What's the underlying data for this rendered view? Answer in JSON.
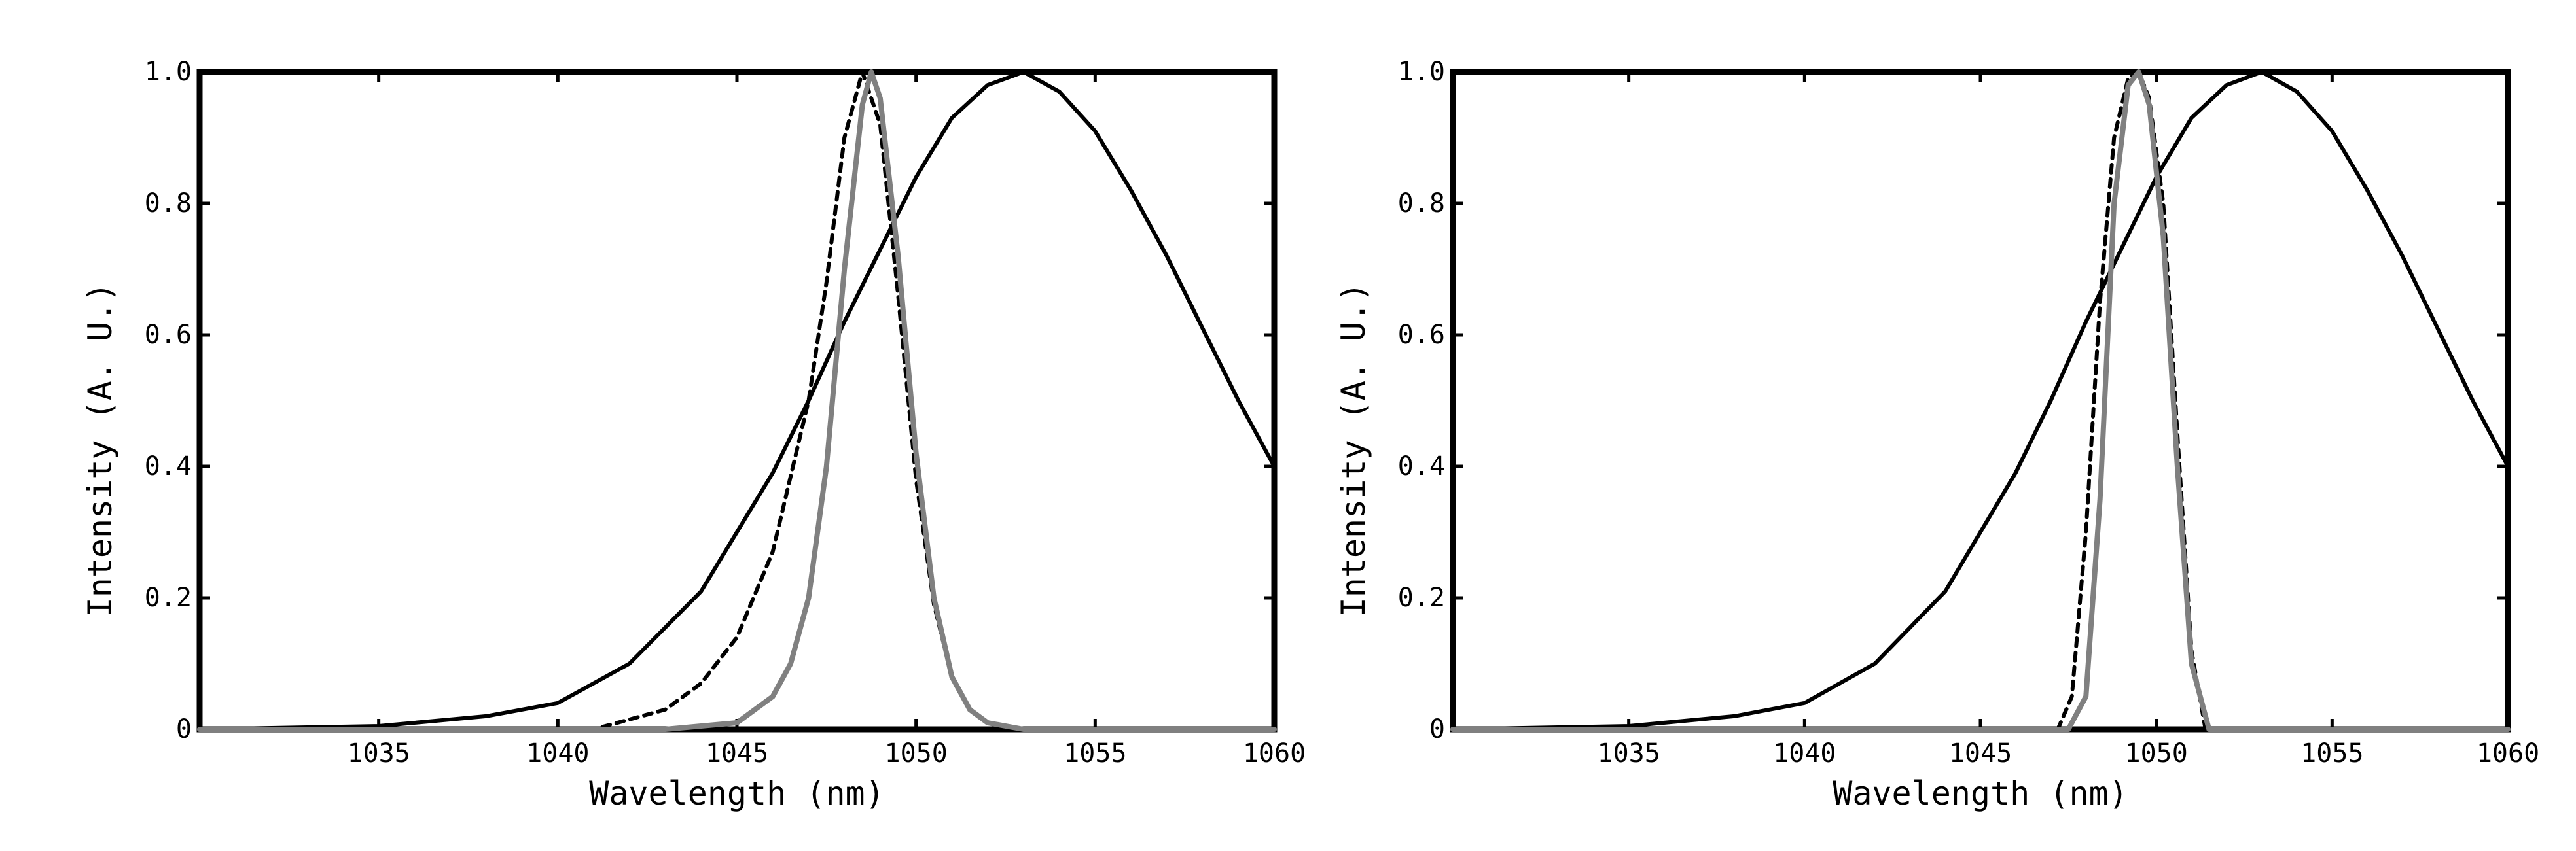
{
  "chart_data": [
    {
      "type": "line",
      "xlabel": "Wavelength (nm)",
      "ylabel": "Intensity (A. U.)",
      "xlim": [
        1030,
        1060
      ],
      "ylim": [
        0,
        1
      ],
      "xticks": [
        "1035",
        "1040",
        "1045",
        "1050",
        "1055",
        "1060"
      ],
      "yticks": [
        "0",
        "0.2",
        "0.4",
        "0.6",
        "0.8",
        "1.0"
      ],
      "grid": false,
      "series": [
        {
          "style": "solid",
          "color": "#000000",
          "x": [
            1030,
            1035,
            1038,
            1040,
            1042,
            1044,
            1046,
            1047,
            1048,
            1049,
            1050,
            1051,
            1052,
            1053,
            1054,
            1055,
            1056,
            1057,
            1058,
            1059,
            1060
          ],
          "y": [
            0,
            0.005,
            0.02,
            0.04,
            0.1,
            0.21,
            0.39,
            0.5,
            0.62,
            0.73,
            0.84,
            0.93,
            0.98,
            1.0,
            0.97,
            0.91,
            0.82,
            0.72,
            0.61,
            0.5,
            0.4
          ]
        },
        {
          "style": "dotted",
          "color": "#000000",
          "x": [
            1030,
            1041,
            1043,
            1044,
            1045,
            1046,
            1047,
            1047.5,
            1048,
            1048.5,
            1049,
            1049.5,
            1050,
            1050.5,
            1051,
            1051.5,
            1052,
            1053,
            1060
          ],
          "y": [
            0,
            0,
            0.03,
            0.07,
            0.14,
            0.27,
            0.5,
            0.68,
            0.9,
            1.0,
            0.92,
            0.66,
            0.38,
            0.19,
            0.08,
            0.03,
            0.01,
            0,
            0
          ]
        },
        {
          "style": "solid",
          "color": "#808080",
          "x": [
            1030,
            1043,
            1045,
            1046,
            1046.5,
            1047,
            1047.5,
            1048,
            1048.5,
            1048.75,
            1049,
            1049.5,
            1050,
            1050.5,
            1051,
            1051.5,
            1052,
            1053,
            1060
          ],
          "y": [
            0,
            0,
            0.01,
            0.05,
            0.1,
            0.2,
            0.4,
            0.7,
            0.95,
            1.0,
            0.96,
            0.72,
            0.42,
            0.2,
            0.08,
            0.03,
            0.01,
            0,
            0
          ]
        }
      ]
    },
    {
      "type": "line",
      "xlabel": "Wavelength (nm)",
      "ylabel": "Intensity (A. U.)",
      "xlim": [
        1030,
        1060
      ],
      "ylim": [
        0,
        1
      ],
      "xticks": [
        "1035",
        "1040",
        "1045",
        "1050",
        "1055",
        "1060"
      ],
      "yticks": [
        "0",
        "0.2",
        "0.4",
        "0.6",
        "0.8",
        "1.0"
      ],
      "grid": false,
      "series": [
        {
          "style": "solid",
          "color": "#000000",
          "x": [
            1030,
            1035,
            1038,
            1040,
            1042,
            1044,
            1046,
            1047,
            1048,
            1049,
            1050,
            1051,
            1052,
            1053,
            1054,
            1055,
            1056,
            1057,
            1058,
            1059,
            1060
          ],
          "y": [
            0,
            0.005,
            0.02,
            0.04,
            0.1,
            0.21,
            0.39,
            0.5,
            0.62,
            0.73,
            0.84,
            0.93,
            0.98,
            1.0,
            0.97,
            0.91,
            0.82,
            0.72,
            0.61,
            0.5,
            0.4
          ]
        },
        {
          "style": "dotted",
          "color": "#000000",
          "x": [
            1030,
            1047.2,
            1047.6,
            1048,
            1048.4,
            1048.8,
            1049.2,
            1049.5,
            1049.8,
            1050.2,
            1050.6,
            1051,
            1051.4,
            1060
          ],
          "y": [
            0,
            0,
            0.05,
            0.3,
            0.65,
            0.9,
            0.99,
            1.0,
            0.96,
            0.8,
            0.45,
            0.12,
            0,
            0
          ]
        },
        {
          "style": "solid",
          "color": "#808080",
          "x": [
            1030,
            1047.5,
            1048,
            1048.4,
            1048.8,
            1049.2,
            1049.5,
            1049.8,
            1050.2,
            1050.6,
            1051,
            1051.5,
            1060
          ],
          "y": [
            0,
            0,
            0.05,
            0.35,
            0.8,
            0.98,
            1.0,
            0.95,
            0.75,
            0.4,
            0.1,
            0,
            0
          ]
        }
      ]
    }
  ]
}
